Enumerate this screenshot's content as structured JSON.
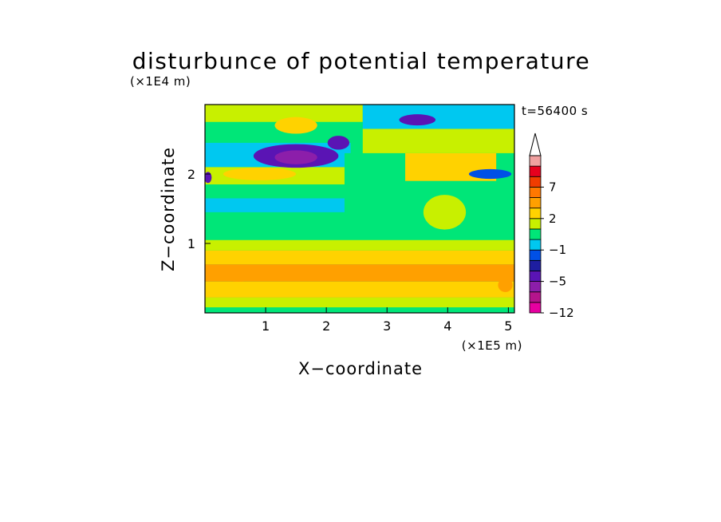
{
  "chart_data": {
    "type": "heatmap",
    "title": "disturbunce of potential temperature",
    "xlabel": "X−coordinate",
    "ylabel": "Z−coordinate",
    "x_unit": "(×1E5 m)",
    "y_unit": "(×1E4 m)",
    "time_label": "t=56400 s",
    "xlim": [
      0,
      5.1
    ],
    "ylim": [
      0,
      3.0
    ],
    "x_ticks": [
      {
        "value": 1,
        "label": "1"
      },
      {
        "value": 2,
        "label": "2"
      },
      {
        "value": 3,
        "label": "3"
      },
      {
        "value": 4,
        "label": "4"
      },
      {
        "value": 5,
        "label": "5"
      }
    ],
    "y_ticks": [
      {
        "value": 1,
        "label": "1"
      },
      {
        "value": 2,
        "label": "2"
      }
    ],
    "colorbar": {
      "extend_max_arrow": true,
      "levels": [
        -12,
        -9,
        -7,
        -5,
        -3,
        -2,
        -1,
        0,
        1,
        2,
        3,
        5,
        7,
        9,
        12
      ],
      "colors": [
        "#e600a0",
        "#b4148c",
        "#8c1eaa",
        "#5a14b4",
        "#1e1ea0",
        "#0050e6",
        "#00c8f0",
        "#00e678",
        "#c8f000",
        "#ffd200",
        "#ffa000",
        "#ff7800",
        "#f03c00",
        "#e6001e",
        "#f0a0a0"
      ],
      "tick_labels": [
        {
          "value": -12,
          "label": "−12"
        },
        {
          "value": -5,
          "label": "−5"
        },
        {
          "value": -1,
          "label": "−1"
        },
        {
          "value": 2,
          "label": "2"
        },
        {
          "value": 7,
          "label": "7"
        }
      ]
    },
    "bands": [
      {
        "z0": 0.0,
        "z1": 0.08,
        "value": 0.5,
        "x0": 0,
        "x1": 5.1
      },
      {
        "z0": 0.08,
        "z1": 0.22,
        "value": 1.5,
        "x0": 0,
        "x1": 5.1
      },
      {
        "z0": 0.22,
        "z1": 0.45,
        "value": 2.5,
        "x0": 0,
        "x1": 5.1
      },
      {
        "z0": 0.45,
        "z1": 0.7,
        "value": 3.5,
        "x0": 0,
        "x1": 5.1
      },
      {
        "z0": 0.7,
        "z1": 0.9,
        "value": 2.5,
        "x0": 0,
        "x1": 5.1
      },
      {
        "z0": 0.9,
        "z1": 1.05,
        "value": 1.5,
        "x0": 0,
        "x1": 5.1
      },
      {
        "z0": 1.05,
        "z1": 1.45,
        "value": 0.5,
        "x0": 0,
        "x1": 5.1
      },
      {
        "z0": 1.45,
        "z1": 1.65,
        "value": -0.5,
        "x0": 0,
        "x1": 2.3
      },
      {
        "z0": 1.65,
        "z1": 1.85,
        "value": 0.5,
        "x0": 0,
        "x1": 2.5
      },
      {
        "z0": 1.85,
        "z1": 2.1,
        "value": 1.5,
        "x0": 0,
        "x1": 2.6
      },
      {
        "z0": 2.1,
        "z1": 2.45,
        "value": -0.5,
        "x0": 0,
        "x1": 2.4
      },
      {
        "z0": 2.45,
        "z1": 2.75,
        "value": 0.5,
        "x0": 0,
        "x1": 2.6
      },
      {
        "z0": 2.75,
        "z1": 3.0,
        "value": 1.5,
        "x0": 0,
        "x1": 2.6
      },
      {
        "z0": 1.45,
        "z1": 2.3,
        "value": 0.5,
        "x0": 2.3,
        "x1": 5.1
      },
      {
        "z0": 1.9,
        "z1": 2.3,
        "value": 2.5,
        "x0": 3.3,
        "x1": 4.8
      },
      {
        "z0": 2.3,
        "z1": 2.65,
        "value": 1.5,
        "x0": 2.6,
        "x1": 5.1
      },
      {
        "z0": 2.65,
        "z1": 3.0,
        "value": -0.5,
        "x0": 2.6,
        "x1": 5.1
      }
    ],
    "features": [
      {
        "x": 1.5,
        "z": 2.26,
        "rx": 0.7,
        "rz": 0.17,
        "value": -3.5
      },
      {
        "x": 1.5,
        "z": 2.24,
        "rx": 0.35,
        "rz": 0.1,
        "value": -5.5
      },
      {
        "x": 2.2,
        "z": 2.45,
        "rx": 0.18,
        "rz": 0.1,
        "value": -3.5
      },
      {
        "x": 1.5,
        "z": 2.7,
        "rx": 0.35,
        "rz": 0.12,
        "value": 2.5
      },
      {
        "x": 0.9,
        "z": 2.0,
        "rx": 0.6,
        "rz": 0.09,
        "value": 2.5
      },
      {
        "x": 3.5,
        "z": 2.78,
        "rx": 0.3,
        "rz": 0.08,
        "value": -3.5
      },
      {
        "x": 4.7,
        "z": 2.0,
        "rx": 0.35,
        "rz": 0.07,
        "value": -1.5
      },
      {
        "x": 0.55,
        "z": 0.55,
        "rx": 0.35,
        "rz": 0.1,
        "value": 4.5
      },
      {
        "x": 4.95,
        "z": 0.4,
        "rx": 0.12,
        "rz": 0.1,
        "value": 4.5
      },
      {
        "x": 4.15,
        "z": 1.35,
        "rx": 0.06,
        "rz": 0.1,
        "value": -3.5
      },
      {
        "x": 0.05,
        "z": 1.95,
        "rx": 0.06,
        "rz": 0.08,
        "value": -3.5
      },
      {
        "x": 3.95,
        "z": 1.45,
        "rx": 0.35,
        "rz": 0.25,
        "value": 1.5
      }
    ]
  }
}
